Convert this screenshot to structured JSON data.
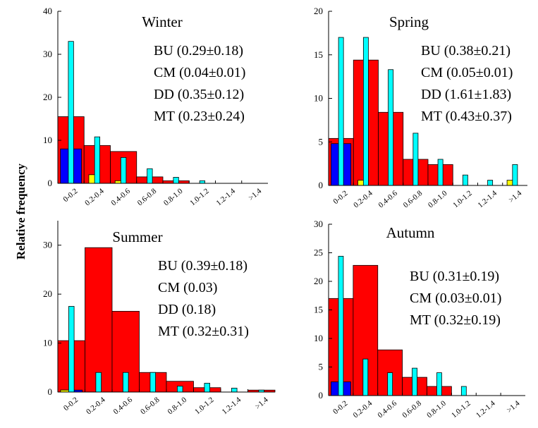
{
  "figure": {
    "ylabel": "Relative frequency"
  },
  "colors": {
    "BU": "#ff0000",
    "CM": "#0000ff",
    "DD": "#ffff00",
    "MT": "#00ffff",
    "axis": "#000000"
  },
  "chart_data": [
    {
      "type": "bar",
      "title": "Winter",
      "categories": [
        "0-0.2",
        "0.2-0.4",
        "0.4-0.6",
        "0.6-0.8",
        "0.8-1.0",
        "1.0-1.2",
        "1.2-1.4",
        ">1.4"
      ],
      "ylim": [
        0,
        40
      ],
      "yticks": [
        0,
        10,
        20,
        30,
        40
      ],
      "series": [
        {
          "name": "BU",
          "values": [
            15.5,
            8.8,
            7.4,
            1.5,
            0.6,
            0,
            0,
            0
          ]
        },
        {
          "name": "CM",
          "values": [
            8.0,
            0,
            0,
            0,
            0,
            0,
            0,
            0
          ]
        },
        {
          "name": "DD",
          "values": [
            0,
            2.0,
            0.6,
            0,
            0,
            0,
            0,
            0
          ]
        },
        {
          "name": "MT",
          "values": [
            33.0,
            10.8,
            6.0,
            3.4,
            1.4,
            0.6,
            0,
            0
          ]
        }
      ],
      "legend": [
        "BU (0.29±0.18)",
        "CM (0.04±0.01)",
        "DD (0.35±0.12)",
        "MT (0.23±0.24)"
      ]
    },
    {
      "type": "bar",
      "title": "Spring",
      "categories": [
        "0-0.2",
        "0.2-0.4",
        "0.4-0.6",
        "0.6-0.8",
        "0.8-1.0",
        "1.0-1.2",
        "1.2-1.4",
        ">1.4"
      ],
      "ylim": [
        0,
        20
      ],
      "yticks": [
        0,
        5,
        10,
        15,
        20
      ],
      "series": [
        {
          "name": "BU",
          "values": [
            5.4,
            14.4,
            8.4,
            3.0,
            2.4,
            0,
            0,
            0
          ]
        },
        {
          "name": "CM",
          "values": [
            4.8,
            0,
            0,
            0,
            0,
            0,
            0,
            0
          ]
        },
        {
          "name": "DD",
          "values": [
            0,
            0.6,
            0,
            0,
            0,
            0,
            0,
            0.6
          ]
        },
        {
          "name": "MT",
          "values": [
            17.0,
            17.0,
            13.3,
            6.0,
            3.0,
            1.2,
            0.6,
            2.4
          ]
        }
      ],
      "legend": [
        "BU (0.38±0.21)",
        "CM (0.05±0.01)",
        "DD (1.61±1.83)",
        "MT (0.43±0.37)"
      ]
    },
    {
      "type": "bar",
      "title": "Summer",
      "categories": [
        "0-0.2",
        "0.2-0.4",
        "0.4-0.6",
        "0.6-0.8",
        "0.8-1.0",
        "1.0-1.2",
        "1.2-1.4",
        ">1.4"
      ],
      "ylim": [
        0,
        35
      ],
      "yticks": [
        0,
        10,
        20,
        30
      ],
      "series": [
        {
          "name": "BU",
          "values": [
            10.5,
            29.5,
            16.5,
            4.0,
            2.2,
            0.9,
            0,
            0.4
          ]
        },
        {
          "name": "CM",
          "values": [
            0.4,
            0,
            0,
            0,
            0,
            0,
            0,
            0
          ]
        },
        {
          "name": "DD",
          "values": [
            0.4,
            0,
            0,
            0,
            0,
            0,
            0,
            0
          ]
        },
        {
          "name": "MT",
          "values": [
            17.5,
            4.0,
            4.0,
            4.0,
            1.2,
            1.8,
            0.8,
            0.4
          ]
        }
      ],
      "legend": [
        "BU (0.39±0.18)",
        "CM (0.03)",
        "DD (0.18)",
        "MT (0.32±0.31)"
      ]
    },
    {
      "type": "bar",
      "title": "Autumn",
      "categories": [
        "0-0.2",
        "0.2-0.4",
        "0.4-0.6",
        "0.6-0.8",
        "0.8-1.0",
        "1.0-1.2",
        "1.2-1.4",
        ">1.4"
      ],
      "ylim": [
        0,
        30
      ],
      "yticks": [
        0,
        5,
        10,
        15,
        20,
        25,
        30
      ],
      "series": [
        {
          "name": "BU",
          "values": [
            17.0,
            22.8,
            8.0,
            3.2,
            1.6,
            0,
            0,
            0
          ]
        },
        {
          "name": "CM",
          "values": [
            2.4,
            0,
            0,
            0,
            0,
            0,
            0,
            0
          ]
        },
        {
          "name": "MT",
          "values": [
            24.4,
            6.4,
            4.0,
            4.8,
            4.0,
            1.6,
            0,
            0
          ]
        }
      ],
      "legend": [
        "BU (0.31±0.19)",
        "CM (0.03±0.01)",
        "MT (0.32±0.19)"
      ]
    }
  ]
}
